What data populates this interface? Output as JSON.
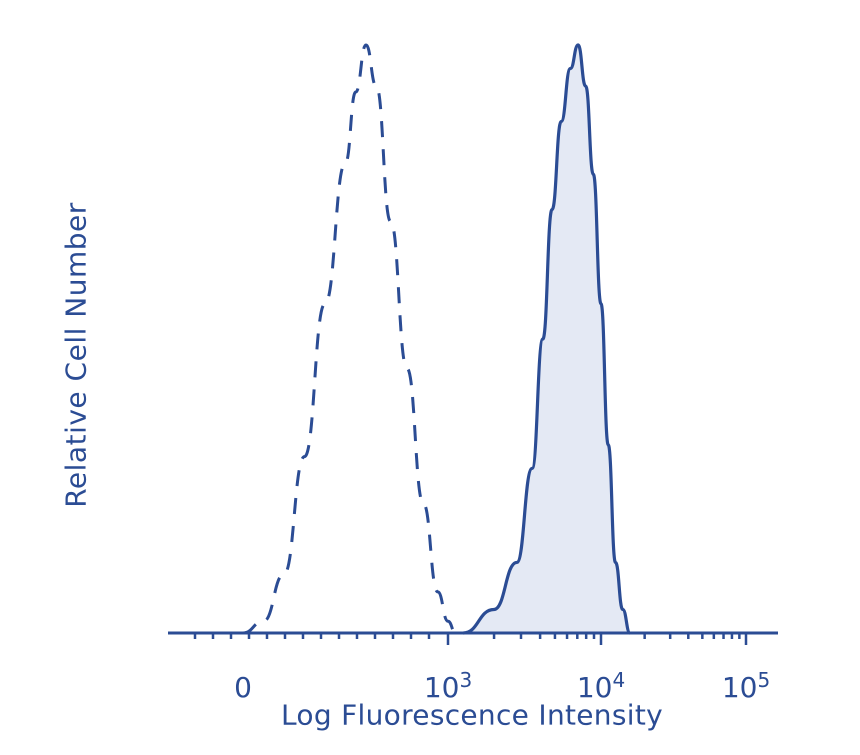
{
  "chart_data": {
    "type": "area",
    "title": "",
    "xlabel": "Log Fluorescence Intensity",
    "ylabel": "Relative Cell Number",
    "x_scale": "biexponential",
    "xticks": [
      {
        "base": "0",
        "exp": ""
      },
      {
        "base": "10",
        "exp": "3"
      },
      {
        "base": "10",
        "exp": "4"
      },
      {
        "base": "10",
        "exp": "5"
      }
    ],
    "grid": false,
    "legend": "none",
    "colors": {
      "line": "#2b4c94",
      "fill": "#e4e9f4"
    },
    "series": [
      {
        "style": "dashed",
        "filled": false,
        "points": [
          [
            0.0,
            0.0
          ],
          [
            0.1,
            0.02
          ],
          [
            0.2,
            0.1
          ],
          [
            0.3,
            0.3
          ],
          [
            0.4,
            0.56
          ],
          [
            0.5,
            0.8
          ],
          [
            0.55,
            0.92
          ],
          [
            0.6,
            1.0
          ],
          [
            0.65,
            0.93
          ],
          [
            0.72,
            0.7
          ],
          [
            0.8,
            0.45
          ],
          [
            0.88,
            0.22
          ],
          [
            0.95,
            0.07
          ],
          [
            1.0,
            0.02
          ],
          [
            1.05,
            0.0
          ]
        ]
      },
      {
        "style": "solid",
        "filled": true,
        "points": [
          [
            1.1,
            0.0
          ],
          [
            1.3,
            0.04
          ],
          [
            1.45,
            0.12
          ],
          [
            1.55,
            0.28
          ],
          [
            1.62,
            0.5
          ],
          [
            1.68,
            0.72
          ],
          [
            1.74,
            0.87
          ],
          [
            1.8,
            0.96
          ],
          [
            1.85,
            1.0
          ],
          [
            1.9,
            0.93
          ],
          [
            1.95,
            0.78
          ],
          [
            2.0,
            0.56
          ],
          [
            2.05,
            0.32
          ],
          [
            2.1,
            0.12
          ],
          [
            2.15,
            0.04
          ],
          [
            2.2,
            0.0
          ]
        ]
      }
    ]
  }
}
